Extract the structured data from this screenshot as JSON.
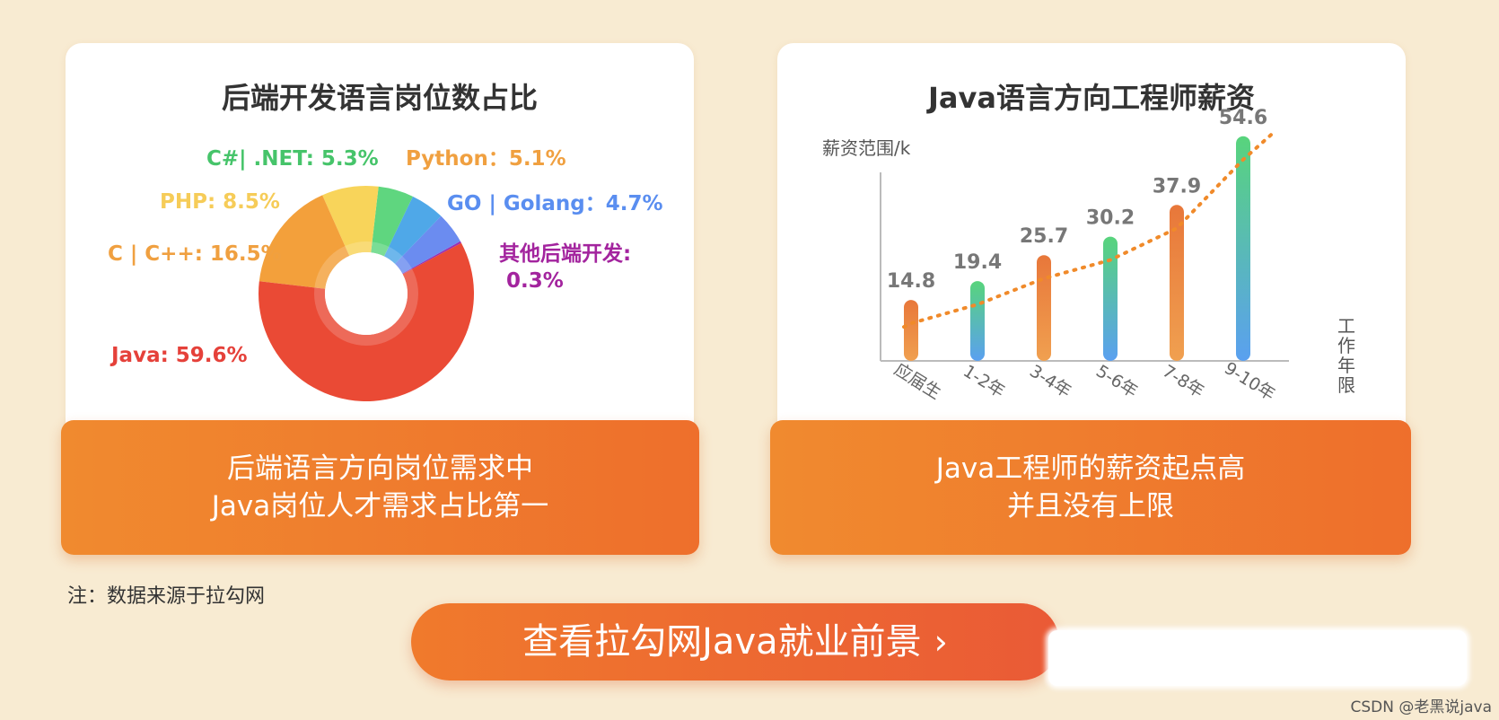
{
  "left_card": {
    "title": "后端开发语言岗位数占比",
    "banner_line1": "后端语言方向岗位需求中",
    "banner_line2": "Java岗位人才需求占比第一"
  },
  "right_card": {
    "title": "Java语言方向工程师薪资",
    "banner_line1": "Java工程师的薪资起点高",
    "banner_line2": "并且没有上限"
  },
  "note": "注：数据来源于拉勾网",
  "cta": {
    "label": "查看拉勾网Java就业前景",
    "icon": "chevron-right-icon"
  },
  "watermark": "CSDN @老黑说java",
  "chart_data": [
    {
      "type": "pie",
      "title": "后端开发语言岗位数占比",
      "slices": [
        {
          "label": "Java:  59.6%",
          "name": "Java",
          "value": 59.6,
          "color": "#ea4a35"
        },
        {
          "label": "C | C++: 16.5%",
          "name": "C | C++",
          "value": 16.5,
          "color": "#f3a03b"
        },
        {
          "label": "PHP: 8.5%",
          "name": "PHP",
          "value": 8.5,
          "color": "#f8d45a"
        },
        {
          "label": "C#| .NET:  5.3%",
          "name": "C#| .NET",
          "value": 5.3,
          "color": "#5fd67f"
        },
        {
          "label": "Python：5.1%",
          "name": "Python",
          "value": 5.1,
          "color": "#4fa8e8"
        },
        {
          "label": "GO | Golang：4.7%",
          "name": "GO | Golang",
          "value": 4.7,
          "color": "#6b8cf0"
        },
        {
          "label": "其他后端开发:",
          "label2": "0.3%",
          "name": "其他后端开发",
          "value": 0.3,
          "color": "#9b2fb0"
        }
      ],
      "label_colors": {
        "Java": "#e5413a",
        "C | C++": "#f0a040",
        "PHP": "#f6cc58",
        "C#| .NET": "#46c46a",
        "Python": "#f0a040",
        "GO | Golang": "#5a8ef0",
        "其他后端开发": "#a3249e"
      }
    },
    {
      "type": "bar",
      "title": "Java语言方向工程师薪资",
      "ylabel": "薪资范围/k",
      "xlabel": "工作年限",
      "categories": [
        "应届生",
        "1-2年",
        "3-4年",
        "5-6年",
        "7-8年",
        "9-10年"
      ],
      "values": [
        14.8,
        19.4,
        25.7,
        30.2,
        37.9,
        54.6
      ],
      "value_labels": [
        "14.8",
        "19.4",
        "25.7",
        "30.2",
        "37.9",
        "54.6"
      ],
      "bar_styles": [
        "orange",
        "green-blue",
        "orange",
        "green-blue",
        "orange",
        "green-blue"
      ],
      "trend_line": "dotted",
      "trend_color": "#f08a2a",
      "ylim": [
        0,
        60
      ]
    }
  ]
}
